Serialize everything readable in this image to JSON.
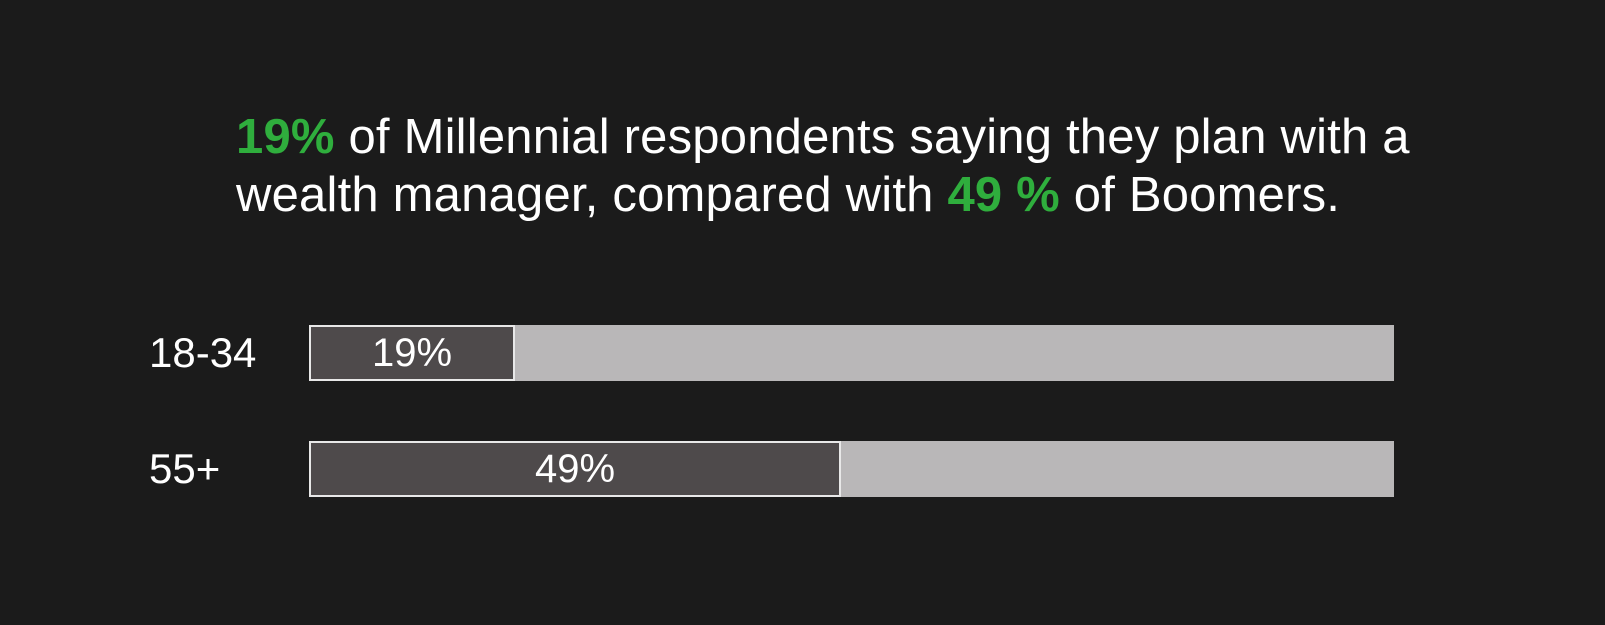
{
  "headline": {
    "highlight_1": "19%",
    "text_1": " of Millennial respondents saying they plan with a wealth manager, compared with ",
    "highlight_2": "49 %",
    "text_2": " of Boomers."
  },
  "colors": {
    "background": "#1b1b1b",
    "highlight": "#2fae3d",
    "bar_fill": "#4e4a4b",
    "bar_track": "#b9b7b8"
  },
  "chart_data": {
    "type": "bar",
    "orientation": "horizontal",
    "categories": [
      "18-34",
      "55+"
    ],
    "values": [
      19,
      49
    ],
    "value_labels": [
      "19%",
      "49%"
    ],
    "xlim": [
      0,
      100
    ],
    "grid": false
  }
}
